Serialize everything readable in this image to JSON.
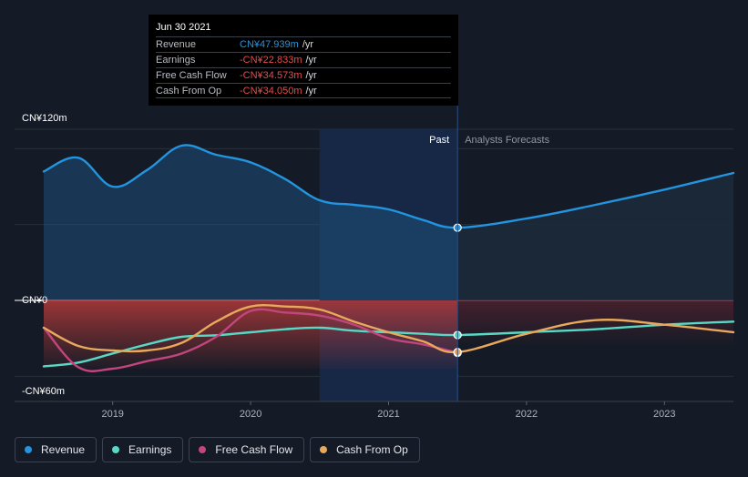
{
  "colors": {
    "background": "#151b26",
    "revenue": "#2394df",
    "earnings": "#58d9c6",
    "free_cash_flow": "#c2467e",
    "cash_from_op": "#e8a95c",
    "negative_fill": "#b33a3a"
  },
  "tooltip": {
    "date": "Jun 30 2021",
    "rows": [
      {
        "label": "Revenue",
        "value": "CN¥47.939m",
        "unit": "/yr",
        "color": "#2394df"
      },
      {
        "label": "Earnings",
        "value": "-CN¥22.833m",
        "unit": "/yr",
        "color": "#e84b4b"
      },
      {
        "label": "Free Cash Flow",
        "value": "-CN¥34.573m",
        "unit": "/yr",
        "color": "#e84b4b"
      },
      {
        "label": "Cash From Op",
        "value": "-CN¥34.050m",
        "unit": "/yr",
        "color": "#e84b4b"
      }
    ]
  },
  "annotations": {
    "past": "Past",
    "forecast": "Analysts Forecasts"
  },
  "legend": [
    {
      "label": "Revenue",
      "color": "#2394df"
    },
    {
      "label": "Earnings",
      "color": "#58d9c6"
    },
    {
      "label": "Free Cash Flow",
      "color": "#c2467e"
    },
    {
      "label": "Cash From Op",
      "color": "#e8a95c"
    }
  ],
  "chart_data": {
    "type": "line",
    "title": "",
    "xlabel": "",
    "ylabel": "",
    "ylim": [
      -60,
      120
    ],
    "y_tick_labels": [
      {
        "value": 120,
        "label": "CN¥120m"
      },
      {
        "value": 0,
        "label": "CN¥0"
      },
      {
        "value": -60,
        "label": "-CN¥60m"
      }
    ],
    "xlim": [
      2018.5,
      2023.5
    ],
    "x_tick_labels": [
      {
        "value": 2019,
        "label": "2019"
      },
      {
        "value": 2020,
        "label": "2020"
      },
      {
        "value": 2021,
        "label": "2021"
      },
      {
        "value": 2022,
        "label": "2022"
      },
      {
        "value": 2023,
        "label": "2023"
      }
    ],
    "highlight_range": [
      2020.5,
      2021.5
    ],
    "past_end": 2021.5,
    "series": [
      {
        "name": "Revenue",
        "key": "revenue",
        "points": [
          [
            2018.5,
            85
          ],
          [
            2018.75,
            94
          ],
          [
            2019.0,
            75
          ],
          [
            2019.25,
            86
          ],
          [
            2019.5,
            102
          ],
          [
            2019.75,
            96
          ],
          [
            2020.0,
            91
          ],
          [
            2020.25,
            80
          ],
          [
            2020.5,
            66
          ],
          [
            2020.75,
            63
          ],
          [
            2021.0,
            60
          ],
          [
            2021.25,
            53
          ],
          [
            2021.5,
            47.939
          ],
          [
            2022.0,
            54
          ],
          [
            2022.5,
            63
          ],
          [
            2023.0,
            73
          ],
          [
            2023.5,
            84
          ]
        ],
        "forecast_from": 2021.5
      },
      {
        "name": "Earnings",
        "key": "earnings",
        "points": [
          [
            2018.5,
            -43.5
          ],
          [
            2018.75,
            -41
          ],
          [
            2019.0,
            -35
          ],
          [
            2019.25,
            -29
          ],
          [
            2019.5,
            -24
          ],
          [
            2019.75,
            -23
          ],
          [
            2020.0,
            -21
          ],
          [
            2020.25,
            -19
          ],
          [
            2020.5,
            -18
          ],
          [
            2020.75,
            -20
          ],
          [
            2021.0,
            -21
          ],
          [
            2021.25,
            -22
          ],
          [
            2021.5,
            -22.833
          ],
          [
            2022.0,
            -21
          ],
          [
            2022.5,
            -19
          ],
          [
            2023.0,
            -16
          ],
          [
            2023.5,
            -14
          ]
        ],
        "forecast_from": 2021.5
      },
      {
        "name": "Free Cash Flow",
        "key": "free_cash_flow",
        "points": [
          [
            2018.5,
            -18
          ],
          [
            2018.75,
            -44
          ],
          [
            2019.0,
            -45
          ],
          [
            2019.25,
            -40
          ],
          [
            2019.5,
            -35
          ],
          [
            2019.75,
            -24
          ],
          [
            2020.0,
            -7
          ],
          [
            2020.25,
            -8
          ],
          [
            2020.5,
            -10
          ],
          [
            2020.75,
            -16
          ],
          [
            2021.0,
            -25
          ],
          [
            2021.25,
            -29
          ],
          [
            2021.5,
            -34.573
          ]
        ],
        "forecast_from": null
      },
      {
        "name": "Cash From Op",
        "key": "cash_from_op",
        "points": [
          [
            2018.5,
            -18
          ],
          [
            2018.75,
            -30
          ],
          [
            2019.0,
            -33
          ],
          [
            2019.25,
            -33
          ],
          [
            2019.5,
            -28
          ],
          [
            2019.75,
            -14
          ],
          [
            2020.0,
            -4
          ],
          [
            2020.25,
            -4
          ],
          [
            2020.5,
            -6
          ],
          [
            2020.75,
            -14
          ],
          [
            2021.0,
            -21
          ],
          [
            2021.25,
            -27
          ],
          [
            2021.5,
            -34.05
          ],
          [
            2022.0,
            -22
          ],
          [
            2022.5,
            -13
          ],
          [
            2023.0,
            -16
          ],
          [
            2023.5,
            -21
          ]
        ],
        "forecast_from": 2021.5
      }
    ]
  }
}
